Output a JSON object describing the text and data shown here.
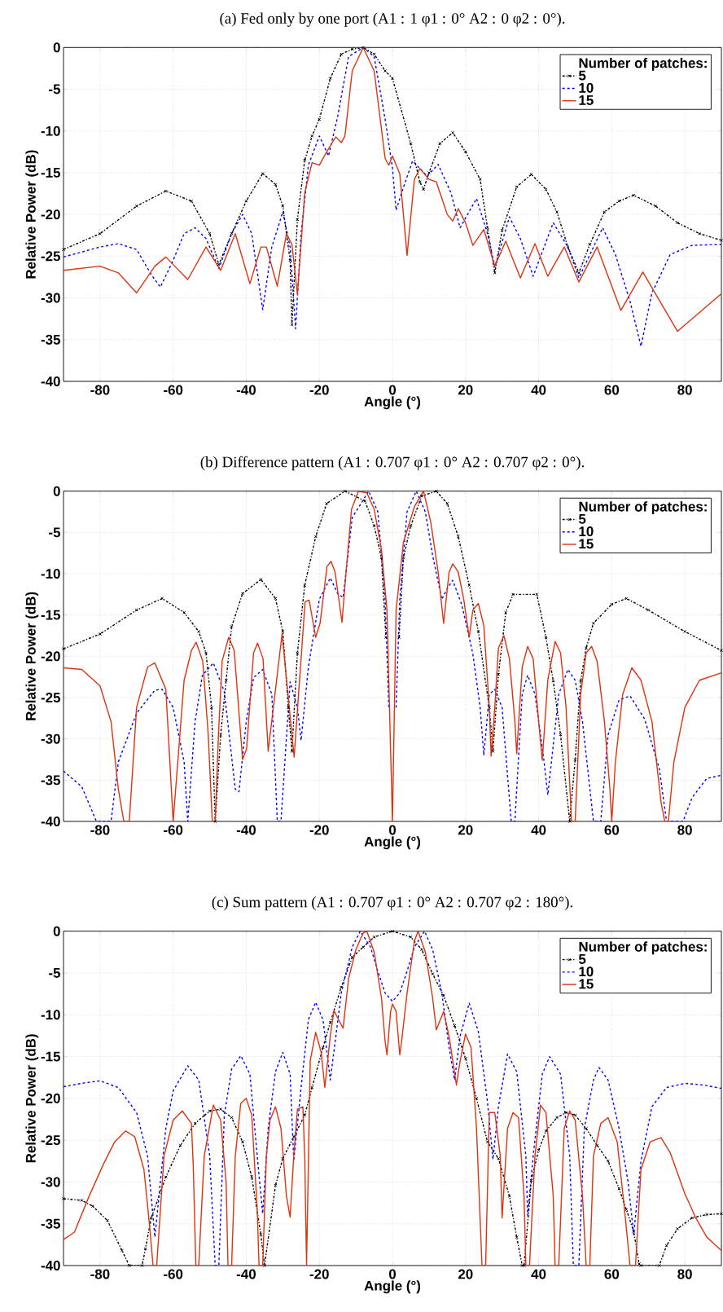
{
  "chart_data": [
    {
      "type": "line",
      "title": "(a) Fed only by one port (A1 : 1 φ1 : 0° A2 : 0 φ2 : 0°).",
      "xlabel": "Angle (°)",
      "ylabel": "Relative Power (dB)",
      "legend_title": "Number of patches:",
      "legend": "top right",
      "grid": true,
      "xlim": [
        -90,
        90
      ],
      "ylim": [
        -40,
        0
      ],
      "xticks": [
        -80,
        -60,
        -40,
        -20,
        0,
        20,
        40,
        60,
        80
      ],
      "yticks": [
        -40,
        -35,
        -30,
        -25,
        -20,
        -15,
        -10,
        -5,
        0
      ],
      "series": [
        {
          "name": "5",
          "color": "#000000",
          "marker": "cross",
          "line_style": "dashdot",
          "x": [
            -90,
            -80,
            -70,
            -62,
            -55,
            -50,
            -47.5,
            -44,
            -40,
            -35.5,
            -32,
            -30,
            -28,
            -27.5,
            -26,
            -24,
            -22,
            -20,
            -17,
            -14,
            -11,
            -8,
            -5,
            -2,
            0,
            5,
            7.5,
            8.5,
            10,
            13,
            16.5,
            20,
            24,
            26,
            28,
            30,
            34,
            38,
            42,
            45,
            48,
            51,
            54,
            58,
            62,
            66,
            72,
            78,
            84,
            90
          ],
          "values": [
            -24.2,
            -22.3,
            -19,
            -17.2,
            -18.4,
            -22.3,
            -26,
            -22.3,
            -18.4,
            -15.1,
            -16.4,
            -19,
            -25.5,
            -33.2,
            -20.6,
            -13.5,
            -10.6,
            -8.6,
            -3.7,
            -0.8,
            -0.2,
            0,
            -0.8,
            -2.8,
            -3.7,
            -11.5,
            -16.1,
            -17,
            -15,
            -11.5,
            -10.2,
            -12.5,
            -15.8,
            -21.6,
            -27,
            -21.9,
            -16.7,
            -15.2,
            -17,
            -19.7,
            -23.9,
            -27,
            -23.6,
            -19.7,
            -18.4,
            -17.7,
            -19,
            -21,
            -22.3,
            -23.1
          ]
        },
        {
          "name": "10",
          "color": "#0000ff",
          "marker": "none",
          "line_style": "dashed",
          "x": [
            -90,
            -80,
            -75,
            -70,
            -66,
            -63.5,
            -60,
            -57,
            -54,
            -51,
            -47.5,
            -44,
            -41,
            -38.5,
            -35.5,
            -33,
            -30,
            -28,
            -26.5,
            -25,
            -23,
            -20,
            -17.5,
            -15,
            -12,
            -8,
            -5,
            -2,
            0,
            1,
            2.5,
            5.5,
            9.5,
            12.5,
            16,
            18.5,
            23,
            26,
            28,
            32,
            35,
            38.5,
            44,
            48,
            51,
            57.5,
            61,
            65,
            68,
            71,
            76,
            82,
            90
          ],
          "values": [
            -25.1,
            -23.9,
            -23.5,
            -24.2,
            -27.2,
            -28.7,
            -25.5,
            -22.3,
            -21.6,
            -22.9,
            -26.5,
            -22.3,
            -20,
            -22.3,
            -31.4,
            -23.9,
            -19.7,
            -23.9,
            -33.7,
            -22.3,
            -14.1,
            -10.6,
            -13,
            -8.3,
            -1.1,
            0,
            -1.1,
            -8.6,
            -14.4,
            -19.5,
            -17.4,
            -13.6,
            -15.4,
            -14,
            -17.4,
            -21.6,
            -18.1,
            -22.3,
            -26.3,
            -20.3,
            -22.9,
            -27.4,
            -21,
            -23.9,
            -27.6,
            -21.6,
            -24.8,
            -30.4,
            -35.8,
            -29.4,
            -24.8,
            -23.7,
            -23.6
          ]
        },
        {
          "name": "15",
          "color": "#dd3311",
          "marker": "none",
          "line_style": "solid",
          "x": [
            -90,
            -80,
            -75,
            -70,
            -65,
            -62,
            -56,
            -51,
            -47,
            -43,
            -39,
            -36,
            -34.5,
            -31.5,
            -29,
            -27.5,
            -26,
            -24,
            -22,
            -20,
            -18,
            -15.5,
            -14,
            -13,
            -11,
            -8,
            -5,
            -2,
            -1,
            0,
            2,
            4,
            6,
            7.5,
            10,
            12,
            15,
            16.5,
            18,
            20,
            22,
            25,
            28,
            31,
            35,
            39,
            42.5,
            47,
            51,
            56,
            62.5,
            68.5,
            78,
            90
          ],
          "values": [
            -26.7,
            -26.2,
            -27,
            -29.4,
            -26.2,
            -25.1,
            -27.8,
            -23.9,
            -26.7,
            -22.3,
            -28.3,
            -23.9,
            -23.9,
            -28.6,
            -22.3,
            -23.6,
            -29.6,
            -17.4,
            -13.8,
            -14.1,
            -12.5,
            -10.7,
            -11.4,
            -10.6,
            -2.8,
            0,
            -2.8,
            -13.3,
            -14.1,
            -13,
            -15.1,
            -24.9,
            -15.8,
            -14.5,
            -15.8,
            -16.1,
            -20,
            -20.8,
            -19.3,
            -21,
            -23.7,
            -21.8,
            -26.2,
            -23.2,
            -27.6,
            -23.5,
            -27.4,
            -23.9,
            -28.1,
            -23.9,
            -31.5,
            -26.9,
            -34,
            -29.5
          ]
        }
      ]
    },
    {
      "type": "line",
      "title": "(b) Difference pattern (A1 : 0.707 φ1 : 0° A2 : 0.707 φ2 : 0°).",
      "xlabel": "Angle (°)",
      "ylabel": "Relative Power (dB)",
      "legend_title": "Number of patches:",
      "legend": "top right",
      "grid": true,
      "xlim": [
        -90,
        90
      ],
      "ylim": [
        -40,
        0
      ],
      "xticks": [
        -80,
        -60,
        -40,
        -20,
        0,
        20,
        40,
        60,
        80
      ],
      "yticks": [
        -40,
        -35,
        -30,
        -25,
        -20,
        -15,
        -10,
        -5,
        0
      ],
      "series": [
        {
          "name": "5",
          "color": "#000000",
          "marker": "cross",
          "line_style": "dashdot",
          "x": [
            -90,
            -80,
            -70,
            -63,
            -57,
            -53,
            -51,
            -49.5,
            -48.5,
            -47,
            -45.5,
            -44,
            -41,
            -36,
            -32,
            -30,
            -28.5,
            -27.5,
            -26,
            -24,
            -21,
            -18,
            -13,
            -7.5,
            -5,
            -3,
            -1.8,
            0,
            1.8,
            3,
            5,
            8,
            12,
            15,
            18,
            21,
            23.5,
            26.5,
            27.5,
            29,
            31,
            33,
            39.5,
            42,
            44,
            46,
            48.5,
            50,
            51.5,
            53,
            55,
            60,
            64,
            70,
            80,
            90
          ],
          "values": [
            -19.1,
            -17.3,
            -14.4,
            -13,
            -14.7,
            -17,
            -19.6,
            -26.2,
            -40,
            -29.5,
            -22.9,
            -16.4,
            -12.4,
            -10.7,
            -13,
            -17,
            -26.2,
            -31.5,
            -19.6,
            -11.4,
            -5.5,
            -1.5,
            0,
            -1.2,
            -4.2,
            -8.1,
            -17.7,
            null,
            -17.7,
            -8.1,
            -4.2,
            -0.6,
            0,
            -1.5,
            -5.5,
            -11.4,
            -17,
            -26.2,
            -31.5,
            -22.2,
            -14.7,
            -12.5,
            -12.5,
            -17.7,
            -23,
            -29.5,
            -40,
            -32.5,
            -23,
            -19,
            -16,
            -13.7,
            -13,
            -14.4,
            -17,
            -19.3
          ]
        },
        {
          "name": "10",
          "color": "#0000ff",
          "marker": "none",
          "line_style": "dashed",
          "x": [
            -90,
            -85,
            -81,
            -77,
            -75,
            -70,
            -65,
            -63,
            -60,
            -57,
            -56,
            -54,
            -52,
            -49,
            -46,
            -43,
            -42,
            -40,
            -38,
            -35.5,
            -33,
            -31.5,
            -30.5,
            -28,
            -26,
            -25,
            -23,
            -20,
            -17,
            -15,
            -13.5,
            -11,
            -6.5,
            -4,
            -2,
            -1,
            0,
            1,
            2,
            4,
            6.5,
            9,
            11,
            13.5,
            15,
            16.5,
            19,
            22,
            24,
            25,
            26.5,
            28,
            30,
            31.5,
            32.5,
            33.5,
            35.5,
            37,
            39,
            41.5,
            42.5,
            43.5,
            45.5,
            48,
            50,
            52,
            55,
            57,
            59,
            62,
            65,
            69,
            73,
            75,
            77,
            79.5,
            82,
            86,
            90
          ],
          "values": [
            -33.9,
            -35.8,
            -40,
            -40,
            -32.8,
            -26.9,
            -24.1,
            -24,
            -26.2,
            -32.8,
            -40,
            -27.9,
            -22.3,
            -20.8,
            -24.3,
            -36.1,
            -36.4,
            -27.9,
            -22.6,
            -21.6,
            -24.6,
            -40,
            -40,
            -23.1,
            -26.2,
            -30.2,
            -21.3,
            -13.1,
            -10.5,
            -12.4,
            -12.9,
            -3.2,
            0,
            -2.5,
            -13.1,
            -26.2,
            null,
            -26.2,
            -13.1,
            -2.5,
            0,
            -2.5,
            -7.8,
            -13.1,
            -11.8,
            -10.8,
            -13.8,
            -19.7,
            -26.2,
            -32,
            -24.6,
            -24,
            -26.2,
            -34.5,
            -40,
            -40,
            -24.6,
            -22.3,
            -24.6,
            -32.8,
            -36.8,
            -32.8,
            -24.6,
            -21.6,
            -22.9,
            -27.9,
            -40,
            -40,
            -29.5,
            -25.3,
            -24.8,
            -27.6,
            -33.6,
            -40,
            -40,
            -40,
            -37.1,
            -34.8,
            -34.4
          ]
        },
        {
          "name": "15",
          "color": "#dd3311",
          "marker": "none",
          "line_style": "solid",
          "x": [
            -90,
            -85,
            -80,
            -77,
            -75,
            -73.5,
            -72,
            -70,
            -67,
            -65,
            -62,
            -60,
            -57,
            -55,
            -53.7,
            -51.9,
            -50.4,
            -49.3,
            -48.5,
            -47.6,
            -46.6,
            -44.8,
            -43.3,
            -41,
            -39.9,
            -38,
            -36.9,
            -35.4,
            -34,
            -30.2,
            -26.9,
            -23.9,
            -22.8,
            -21,
            -19.8,
            -17.9,
            -16.8,
            -15.7,
            -13.8,
            -12.7,
            -11.2,
            -9.3,
            -7,
            -5,
            -3,
            -1.5,
            0,
            1,
            3,
            6,
            8.5,
            10.5,
            12.5,
            14,
            15.5,
            16.5,
            18,
            19.5,
            21,
            22,
            23.5,
            25,
            26.5,
            27,
            28,
            29,
            30.5,
            32,
            33.5,
            34,
            35.5,
            37,
            38.5,
            40,
            41,
            42.5,
            44.5,
            46,
            47.5,
            49,
            50,
            51.5,
            53,
            54.5,
            56,
            58,
            59.5,
            60,
            61,
            63,
            65.5,
            68,
            71,
            73.5,
            74.5,
            75.5,
            77,
            80,
            84,
            90
          ],
          "values": [
            -21.4,
            -21.6,
            -23.6,
            -27.9,
            -36.1,
            -40,
            -40,
            -26.2,
            -21.3,
            -20.8,
            -24,
            -40,
            -22.9,
            -19.3,
            -18.3,
            -20.6,
            -29.5,
            -40,
            -40,
            -29.5,
            -20.6,
            -17.7,
            -19.3,
            -32.5,
            -31.2,
            -19.6,
            -18.4,
            -20.3,
            -31.5,
            -17.3,
            -32.2,
            -13.4,
            -13.2,
            -17.7,
            -16,
            -9.1,
            -8.5,
            -9.8,
            -15.9,
            -9.8,
            -2.2,
            0,
            -0.2,
            -2.2,
            -7.1,
            -14.4,
            -40,
            -14.4,
            -6.2,
            -1.9,
            0,
            -3.8,
            -9.8,
            -16,
            -9.8,
            -8.8,
            -9.8,
            -13.1,
            -17.7,
            -14.4,
            -13.6,
            -16.3,
            -26.2,
            -32.1,
            -26.2,
            -19,
            -17.5,
            -20.3,
            -27.9,
            -31.8,
            -21.3,
            -18.8,
            -20.3,
            -27.9,
            -32.6,
            -22.9,
            -18.2,
            -19.6,
            -26.2,
            -40,
            -40,
            -24.6,
            -19.6,
            -18.8,
            -20.6,
            -27.9,
            -36.1,
            -40,
            -32.8,
            -24.6,
            -21.4,
            -22.9,
            -27.9,
            -37.7,
            -40,
            -40,
            -32.8,
            -26.2,
            -22.9,
            -22
          ]
        }
      ]
    },
    {
      "type": "line",
      "title": "(c) Sum pattern (A1 : 0.707 φ1 : 0° A2 : 0.707 φ2 : 180°).",
      "xlabel": "Angle (°)",
      "ylabel": "Relative Power (dB)",
      "legend_title": "Number of patches:",
      "legend": "top right",
      "grid": true,
      "xlim": [
        -90,
        90
      ],
      "ylim": [
        -40,
        0
      ],
      "xticks": [
        -80,
        -60,
        -40,
        -20,
        0,
        20,
        40,
        60,
        80
      ],
      "yticks": [
        -40,
        -35,
        -30,
        -25,
        -20,
        -15,
        -10,
        -5,
        0
      ],
      "series": [
        {
          "name": "5",
          "color": "#000000",
          "marker": "cross",
          "line_style": "dashdot",
          "x": [
            -90,
            -85,
            -82,
            -78,
            -74,
            -72,
            -68.5,
            -67.6,
            -66,
            -62,
            -58,
            -54,
            -50,
            -47,
            -44,
            -41,
            -38.5,
            -36,
            -35,
            -32,
            -30,
            -27,
            -24,
            -22,
            -19,
            -17,
            -14,
            -11,
            -8,
            -5,
            0,
            5,
            8,
            11,
            14,
            17,
            20,
            23,
            26,
            29,
            32,
            34,
            35.5,
            36,
            38,
            40,
            42,
            45,
            47.5,
            50,
            53,
            56,
            59,
            62,
            64,
            66,
            67.5,
            68,
            73,
            75,
            78,
            82,
            86,
            90
          ],
          "values": [
            -32,
            -32.2,
            -32.9,
            -34.6,
            -38.2,
            -40,
            -40,
            -38,
            -34.3,
            -29.4,
            -25.6,
            -23,
            -21.5,
            -21.3,
            -22.3,
            -25.2,
            -29.4,
            -36.3,
            -40,
            -30.4,
            -27.2,
            -24.6,
            -22,
            -18.7,
            -13.9,
            -10.9,
            -6.7,
            -3.1,
            -1.9,
            -0.7,
            0,
            -0.7,
            -2.2,
            -5.1,
            -7.7,
            -11.3,
            -15.2,
            -20,
            -25.2,
            -27.2,
            -31.7,
            -36.6,
            -40,
            -40,
            -29.8,
            -26.2,
            -23.9,
            -22.3,
            -21.7,
            -22,
            -23.6,
            -25.6,
            -27.5,
            -30.8,
            -33.3,
            -35.9,
            -39.8,
            -40,
            -40,
            -37.6,
            -35.6,
            -34.3,
            -33.9,
            -33.8
          ]
        },
        {
          "name": "10",
          "color": "#0000ff",
          "marker": "none",
          "line_style": "dashed",
          "x": [
            -90,
            -85,
            -80,
            -75,
            -70,
            -67,
            -65,
            -63.5,
            -62,
            -60,
            -56,
            -53,
            -50,
            -48.5,
            -47.5,
            -46,
            -44,
            -41.5,
            -39,
            -37,
            -35.5,
            -34,
            -32,
            -30,
            -28,
            -27,
            -25,
            -23,
            -21,
            -19,
            -17,
            -14,
            -11,
            -8.8,
            -6,
            -4,
            -2,
            0,
            2,
            4,
            6,
            8.8,
            11,
            13.5,
            15.5,
            17,
            18.5,
            21,
            23.5,
            26,
            27.5,
            29,
            31.5,
            34,
            36.5,
            37,
            38.5,
            41,
            43,
            46,
            48.5,
            49.5,
            51,
            52.5,
            55,
            56.5,
            59,
            62,
            64.5,
            66,
            68,
            71,
            75,
            80,
            85,
            90
          ],
          "values": [
            -18.6,
            -18.2,
            -17.9,
            -18.7,
            -21.7,
            -26.9,
            -36.6,
            -30,
            -23.6,
            -19.1,
            -16.1,
            -17.8,
            -26.9,
            -40,
            -40,
            -22,
            -16.5,
            -14.9,
            -17.1,
            -26.9,
            -33.8,
            -23.6,
            -16.8,
            -14.5,
            -17.1,
            -27.5,
            -18.7,
            -10.6,
            -8.5,
            -10.6,
            -17.8,
            -7.4,
            -1.9,
            0,
            -1.9,
            -4.8,
            -7.4,
            -8.4,
            -7.4,
            -4.8,
            -1.9,
            0,
            -2.2,
            -7.4,
            -13.9,
            -17.8,
            -12.6,
            -8.6,
            -12,
            -20.4,
            -27.3,
            -21,
            -14.7,
            -16.8,
            -26.9,
            -34,
            -26.9,
            -17.1,
            -15,
            -17.1,
            -26.9,
            -40,
            -40,
            -23.6,
            -17.8,
            -16.3,
            -17.8,
            -23.6,
            -30.1,
            -36.3,
            -27.5,
            -21,
            -18.7,
            -18.2,
            -18.4,
            -18.8
          ]
        },
        {
          "name": "15",
          "color": "#dd3311",
          "marker": "none",
          "line_style": "solid",
          "x": [
            -90,
            -87,
            -83,
            -79,
            -76,
            -73,
            -70.5,
            -68,
            -66.5,
            -65.5,
            -64.5,
            -62.5,
            -60,
            -57.5,
            -55,
            -54.5,
            -53.8,
            -53,
            -51.5,
            -49,
            -47,
            -45.5,
            -45,
            -44,
            -43,
            -41.5,
            -40,
            -38.5,
            -37,
            -36.5,
            -35.5,
            -34.5,
            -33.5,
            -32,
            -30.5,
            -29,
            -28,
            -27,
            -26,
            -24.5,
            -24,
            -23.5,
            -22.5,
            -21,
            -19.5,
            -18.5,
            -17,
            -16,
            -14.5,
            -13.5,
            -12,
            -10,
            -8,
            -7,
            -5,
            -3,
            -2,
            -1.5,
            -0.5,
            0,
            1,
            2,
            2.5,
            4,
            6,
            7,
            9,
            11,
            12,
            14,
            15.5,
            17.5,
            18.5,
            20,
            21.5,
            23,
            24.5,
            25.5,
            26.5,
            28,
            29.5,
            30,
            31.5,
            33,
            34.5,
            36,
            36.5,
            37.5,
            39,
            40.5,
            42,
            44,
            44.5,
            45.5,
            47,
            48.5,
            50,
            52,
            53,
            54,
            55,
            57,
            59,
            61.5,
            63.5,
            65,
            66.5,
            68,
            70.5,
            73.5,
            76,
            80,
            83,
            86,
            90
          ],
          "values": [
            -36.9,
            -36,
            -31.7,
            -27.8,
            -25.2,
            -23.9,
            -24.6,
            -28.5,
            -35,
            -40,
            -40,
            -26.9,
            -22.6,
            -21.5,
            -23,
            -28,
            -40,
            -40,
            -26.9,
            -20.8,
            -22.6,
            -30.1,
            -40,
            -40,
            -26.9,
            -20.6,
            -20,
            -22,
            -33.3,
            -40,
            -40,
            -26.9,
            -22.6,
            -21,
            -23.6,
            -31.7,
            -34.2,
            -26.9,
            -21.3,
            -21,
            -26.9,
            -40,
            -15.5,
            -12.1,
            -14.5,
            -18.7,
            -12.5,
            -9.5,
            -10.8,
            -11.6,
            -5.7,
            -2.2,
            -0.2,
            0,
            -2.5,
            -8,
            -13.2,
            -14.8,
            -9.6,
            -8.7,
            -9.6,
            -14.8,
            -13.2,
            -7.4,
            -1.2,
            0,
            -2.5,
            -8,
            -11.8,
            -9.6,
            -12.6,
            -18.4,
            -15.6,
            -12.3,
            -13.9,
            -23.6,
            -40,
            -40,
            -21.7,
            -21.7,
            -26.9,
            -34.3,
            -23.6,
            -21.7,
            -22.3,
            -31.7,
            -40,
            -40,
            -26.9,
            -20.8,
            -21.7,
            -31.7,
            -40,
            -40,
            -23.6,
            -21.5,
            -22.6,
            -31.7,
            -40,
            -40,
            -26.9,
            -23,
            -22.3,
            -25.2,
            -33.3,
            -40,
            -40,
            -28.5,
            -25.2,
            -24.7,
            -26.5,
            -31.4,
            -34.3,
            -36.6,
            -38.2
          ]
        }
      ]
    }
  ]
}
